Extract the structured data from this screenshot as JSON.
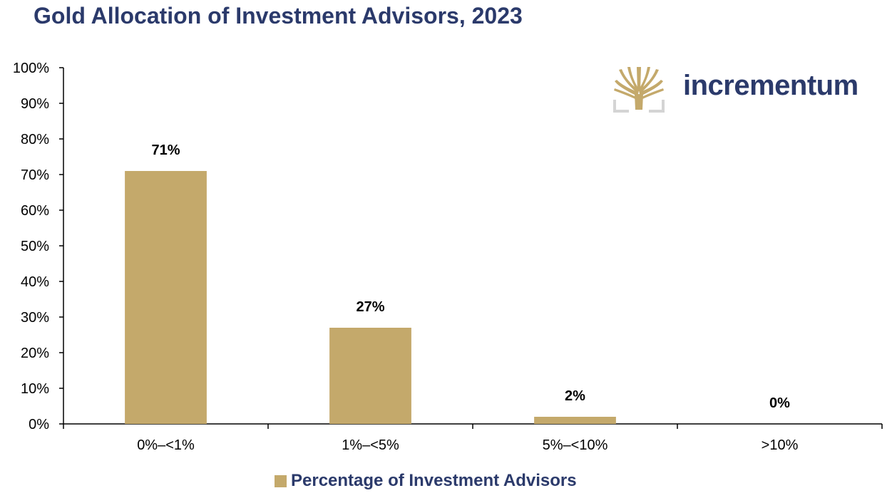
{
  "chart_data": {
    "type": "bar",
    "title": "Gold Allocation of Investment Advisors, 2023",
    "categories": [
      "0%–<1%",
      "1%–<5%",
      "5%–<10%",
      ">10%"
    ],
    "series": [
      {
        "name": "Percentage of Investment Advisors",
        "values": [
          71,
          27,
          2,
          0
        ],
        "color": "#c4a96b"
      }
    ],
    "data_labels": [
      "71%",
      "27%",
      "2%",
      "0%"
    ],
    "ylim": [
      0,
      100
    ],
    "yticks": [
      "0%",
      "10%",
      "20%",
      "30%",
      "40%",
      "50%",
      "60%",
      "70%",
      "80%",
      "90%",
      "100%"
    ],
    "xlabel": "",
    "ylabel": "",
    "grid": false,
    "legend_position": "bottom-center"
  },
  "logo": {
    "text": "incrementum",
    "icon": "tree-logo-icon"
  },
  "colors": {
    "title": "#2b3a6b",
    "bar": "#c4a96b",
    "axis": "#000000"
  }
}
